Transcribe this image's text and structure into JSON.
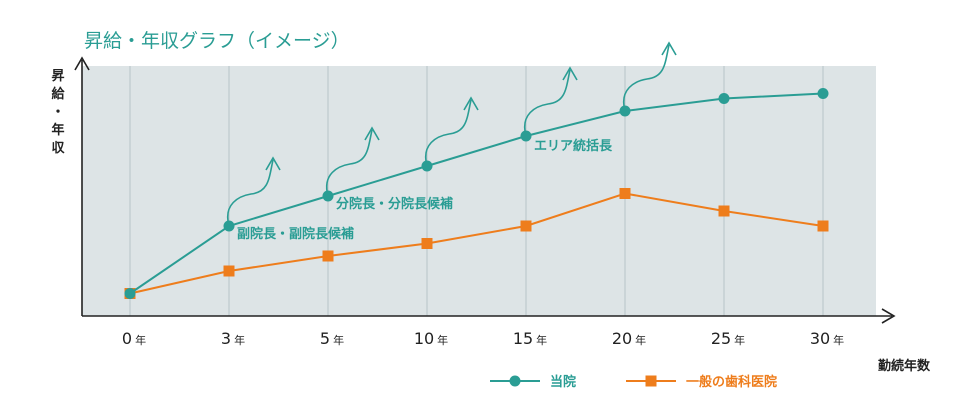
{
  "chart_data": {
    "type": "line",
    "title": "昇給・年収グラフ（イメージ）",
    "ylabel": "昇給・年収",
    "xlabel": "勤続年数",
    "x_unit": "年",
    "categories": [
      "0",
      "3",
      "5",
      "10",
      "15",
      "20",
      "25",
      "30"
    ],
    "ylim": [
      0,
      100
    ],
    "grid": true,
    "series": [
      {
        "name": "当院",
        "color": "#2a9d94",
        "marker": "circle",
        "values": [
          9,
          36,
          48,
          60,
          72,
          82,
          87,
          89
        ]
      },
      {
        "name": "一般の歯科医院",
        "color": "#ee7d1c",
        "marker": "square",
        "values": [
          9,
          18,
          24,
          29,
          36,
          49,
          42,
          36
        ]
      }
    ],
    "annotations": [
      {
        "text": "副院長・副院長候補",
        "category_index": 1
      },
      {
        "text": "分院長・分院長候補",
        "category_index": 2
      },
      {
        "text": "エリア統括長",
        "category_index": 4
      }
    ],
    "growth_arrows_at": [
      1,
      2,
      3,
      4,
      5
    ],
    "legend_position": "bottom-right",
    "colors": {
      "plot_bg": "#dde4e6",
      "grid": "#b8c4c8",
      "axis": "#222222"
    }
  }
}
